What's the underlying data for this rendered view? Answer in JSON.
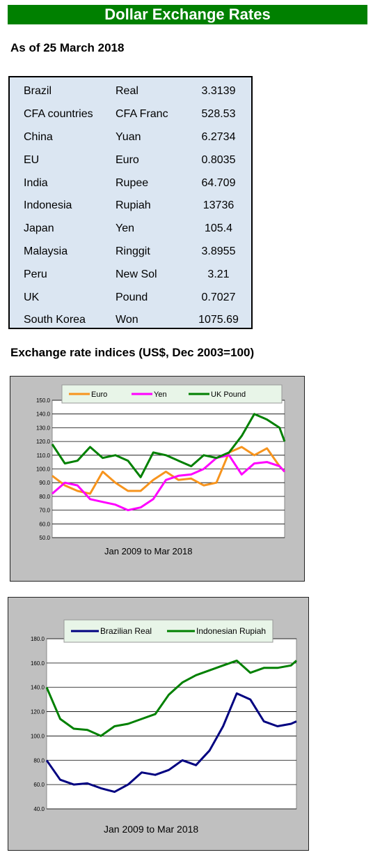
{
  "title": "Dollar Exchange Rates",
  "as_of": "As of 25 March 2018",
  "rates": [
    {
      "country": "Brazil",
      "currency": "Real",
      "value": "3.3139"
    },
    {
      "country": "CFA countries",
      "currency": "CFA Franc",
      "value": "528.53"
    },
    {
      "country": "China",
      "currency": "Yuan",
      "value": "6.2734"
    },
    {
      "country": "EU",
      "currency": "Euro",
      "value": "0.8035"
    },
    {
      "country": "India",
      "currency": "Rupee",
      "value": "64.709"
    },
    {
      "country": "Indonesia",
      "currency": "Rupiah",
      "value": "13736"
    },
    {
      "country": "Japan",
      "currency": "Yen",
      "value": "105.4"
    },
    {
      "country": "Malaysia",
      "currency": "Ringgit",
      "value": "3.8955"
    },
    {
      "country": "Peru",
      "currency": "New Sol",
      "value": "3.21"
    },
    {
      "country": "UK",
      "currency": "Pound",
      "value": "0.7027"
    },
    {
      "country": "South Korea",
      "currency": "Won",
      "value": "1075.69"
    }
  ],
  "indices_heading": "Exchange rate indices (US$, Dec 2003=100)",
  "chart_data": [
    {
      "type": "line",
      "xlabel": "Jan 2009  to Mar 2018",
      "ylim": [
        50,
        150
      ],
      "yticks": [
        "150.0",
        "140.0",
        "130.0",
        "120.0",
        "110.0",
        "100.0",
        "90.0",
        "80.0",
        "70.0",
        "60.0",
        "50.0"
      ],
      "grid": true,
      "legend": "top",
      "x": [
        2009.0,
        2009.5,
        2010.0,
        2010.5,
        2011.0,
        2011.5,
        2012.0,
        2012.5,
        2013.0,
        2013.5,
        2014.0,
        2014.5,
        2015.0,
        2015.5,
        2016.0,
        2016.5,
        2017.0,
        2017.5,
        2018.0,
        2018.2
      ],
      "series": [
        {
          "name": "Euro",
          "color": "#f7941d",
          "values": [
            95,
            88,
            84,
            82,
            98,
            90,
            84,
            84,
            92,
            98,
            92,
            93,
            88,
            90,
            112,
            116,
            110,
            115,
            102,
            98
          ]
        },
        {
          "name": "Yen",
          "color": "#ff00ff",
          "values": [
            82,
            90,
            88,
            78,
            76,
            74,
            70,
            72,
            78,
            92,
            95,
            96,
            100,
            108,
            110,
            96,
            104,
            105,
            102,
            98
          ]
        },
        {
          "name": "UK Pound",
          "color": "#008000",
          "values": [
            118,
            104,
            106,
            116,
            108,
            110,
            106,
            94,
            112,
            110,
            106,
            102,
            110,
            108,
            112,
            124,
            140,
            136,
            130,
            120
          ]
        }
      ]
    },
    {
      "type": "line",
      "xlabel": "Jan 2009 to Mar 2018",
      "ylim": [
        40,
        180
      ],
      "yticks": [
        "180.0",
        "160.0",
        "140.0",
        "120.0",
        "100.0",
        "80.0",
        "60.0",
        "40.0"
      ],
      "grid": true,
      "legend": "top",
      "x": [
        2009.0,
        2009.5,
        2010.0,
        2010.5,
        2011.0,
        2011.5,
        2012.0,
        2012.5,
        2013.0,
        2013.5,
        2014.0,
        2014.5,
        2015.0,
        2015.5,
        2016.0,
        2016.5,
        2017.0,
        2017.5,
        2018.0,
        2018.2
      ],
      "series": [
        {
          "name": "Brazilian Real",
          "color": "#000080",
          "values": [
            80,
            64,
            60,
            61,
            57,
            54,
            60,
            70,
            68,
            72,
            80,
            76,
            88,
            108,
            135,
            130,
            112,
            108,
            110,
            112
          ]
        },
        {
          "name": "Indonesian Rupiah",
          "color": "#008000",
          "values": [
            140,
            114,
            106,
            105,
            100,
            108,
            110,
            114,
            118,
            134,
            144,
            150,
            154,
            158,
            162,
            152,
            156,
            156,
            158,
            162
          ]
        }
      ]
    }
  ]
}
